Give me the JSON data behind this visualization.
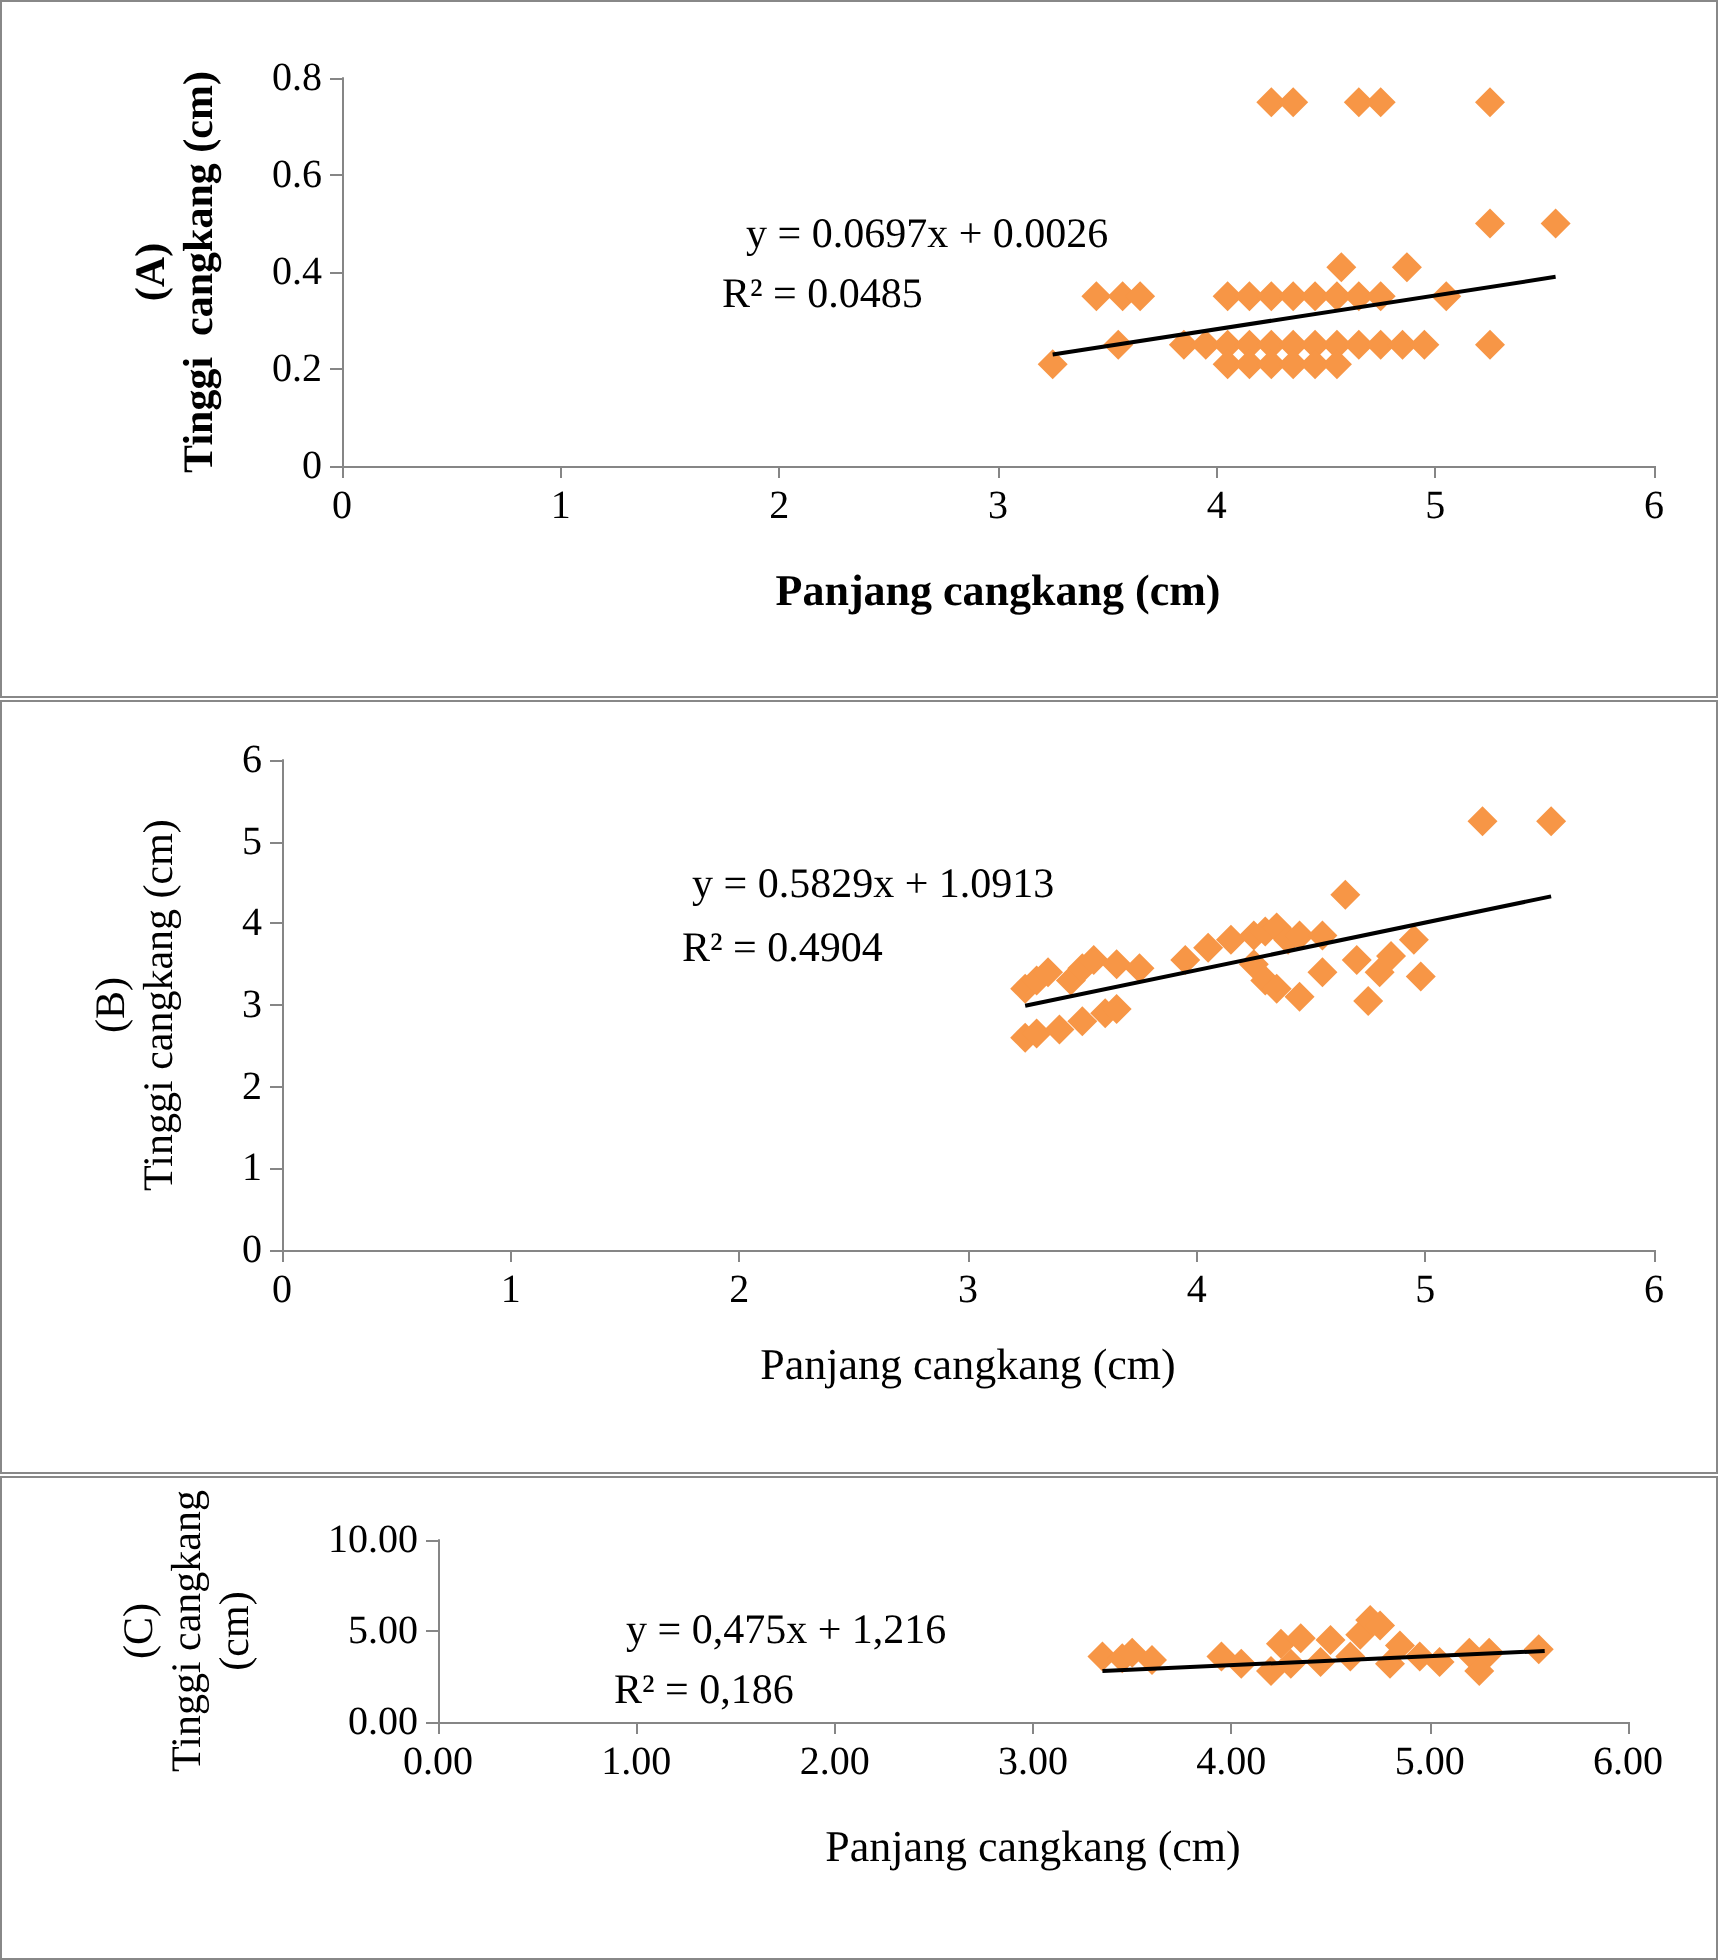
{
  "chart_data": [
    {
      "type": "scatter",
      "xlabel": "Panjang cangkang (cm)",
      "ylabel": "(A)\nTinggi  cangkang (cm)",
      "xlim": [
        0,
        6
      ],
      "xticks": [
        0,
        1,
        2,
        3,
        4,
        5,
        6
      ],
      "ylim": [
        0,
        0.8
      ],
      "yticks": [
        0,
        0.2,
        0.4,
        0.6,
        0.8
      ],
      "grid": false,
      "marker": "diamond",
      "annotations": [
        "y = 0.0697x + 0.0026",
        "R² = 0.0485"
      ],
      "series": [
        {
          "color": "#f79646",
          "x": [
            4.25,
            4.35,
            4.65,
            4.75,
            5.25,
            5.25,
            5.55,
            4.57,
            4.87,
            3.45,
            3.57,
            3.65,
            4.05,
            4.15,
            4.25,
            4.35,
            4.45,
            4.55,
            4.65,
            4.75,
            5.05,
            3.55,
            3.85,
            3.95,
            4.05,
            4.15,
            4.25,
            4.35,
            4.45,
            4.55,
            4.65,
            4.75,
            4.85,
            4.95,
            5.25,
            3.25,
            4.05,
            4.15,
            4.25,
            4.35,
            4.45,
            4.55
          ],
          "values": [
            0.75,
            0.75,
            0.75,
            0.75,
            0.75,
            0.5,
            0.5,
            0.41,
            0.41,
            0.35,
            0.35,
            0.35,
            0.35,
            0.35,
            0.35,
            0.35,
            0.35,
            0.35,
            0.35,
            0.35,
            0.35,
            0.25,
            0.25,
            0.25,
            0.25,
            0.25,
            0.25,
            0.25,
            0.25,
            0.25,
            0.25,
            0.25,
            0.25,
            0.25,
            0.25,
            0.21,
            0.21,
            0.21,
            0.21,
            0.21,
            0.21,
            0.21
          ]
        },
        {
          "type": "line",
          "color": "#000000",
          "marker": "none",
          "line_style": "solid",
          "x": [
            3.25,
            5.55
          ],
          "values": [
            0.23,
            0.39
          ]
        }
      ]
    },
    {
      "type": "scatter",
      "xlabel": "Panjang cangkang (cm)",
      "ylabel": "(B)\nTinggi cangkang (cm)",
      "xlim": [
        0,
        6
      ],
      "xticks": [
        0,
        1,
        2,
        3,
        4,
        5,
        6
      ],
      "ylim": [
        0,
        6
      ],
      "yticks": [
        0,
        1,
        2,
        3,
        4,
        5,
        6
      ],
      "grid": false,
      "marker": "diamond",
      "annotations": [
        "y = 0.5829x + 1.0913",
        "R² = 0.4904"
      ],
      "series": [
        {
          "color": "#f79646",
          "x": [
            3.25,
            3.3,
            3.4,
            3.5,
            3.6,
            3.65,
            3.25,
            3.3,
            3.35,
            3.45,
            3.5,
            3.55,
            3.65,
            3.75,
            3.95,
            4.05,
            4.15,
            4.25,
            4.3,
            4.35,
            4.4,
            4.45,
            4.55,
            4.25,
            4.3,
            4.35,
            4.45,
            4.55,
            4.65,
            4.7,
            4.75,
            4.8,
            4.85,
            4.95,
            4.98,
            5.25,
            5.55
          ],
          "values": [
            2.6,
            2.65,
            2.7,
            2.8,
            2.9,
            2.95,
            3.2,
            3.3,
            3.4,
            3.3,
            3.45,
            3.55,
            3.5,
            3.45,
            3.55,
            3.7,
            3.8,
            3.85,
            3.9,
            3.95,
            3.8,
            3.85,
            3.85,
            3.5,
            3.3,
            3.2,
            3.1,
            3.4,
            4.35,
            3.55,
            3.05,
            3.4,
            3.6,
            3.8,
            3.35,
            5.25,
            5.25
          ]
        },
        {
          "type": "line",
          "color": "#000000",
          "marker": "none",
          "line_style": "solid",
          "x": [
            3.25,
            5.55
          ],
          "values": [
            2.99,
            4.33
          ]
        }
      ]
    },
    {
      "type": "scatter",
      "xlabel": "Panjang cangkang (cm)",
      "ylabel": "(C)\nTinggi cangkang\n(cm)",
      "xlim": [
        0,
        6
      ],
      "xticks": [
        {
          "value": 0,
          "label": "0.00"
        },
        {
          "value": 1,
          "label": "1.00"
        },
        {
          "value": 2,
          "label": "2.00"
        },
        {
          "value": 3,
          "label": "3.00"
        },
        {
          "value": 4,
          "label": "4.00"
        },
        {
          "value": 5,
          "label": "5.00"
        },
        {
          "value": 6,
          "label": "6.00"
        }
      ],
      "ylim": [
        0,
        10
      ],
      "yticks": [
        {
          "value": 0,
          "label": "0.00"
        },
        {
          "value": 5,
          "label": "5.00"
        },
        {
          "value": 10,
          "label": "10.00"
        }
      ],
      "grid": false,
      "marker": "diamond",
      "annotations": [
        "y = 0,475x + 1,216",
        "R² = 0,186"
      ],
      "series": [
        {
          "color": "#f79646",
          "x": [
            3.35,
            3.45,
            3.5,
            3.6,
            3.95,
            4.05,
            4.2,
            4.25,
            4.3,
            4.35,
            4.45,
            4.5,
            4.6,
            4.65,
            4.7,
            4.75,
            4.8,
            4.85,
            4.95,
            5.05,
            5.2,
            5.25,
            5.3,
            5.55
          ],
          "values": [
            3.6,
            3.5,
            3.8,
            3.4,
            3.6,
            3.2,
            2.8,
            4.3,
            3.2,
            4.6,
            3.3,
            4.5,
            3.6,
            4.8,
            5.6,
            5.3,
            3.2,
            4.2,
            3.6,
            3.3,
            3.8,
            2.8,
            3.8,
            4.0
          ]
        },
        {
          "type": "line",
          "color": "#000000",
          "marker": "none",
          "line_style": "solid",
          "x": [
            3.35,
            5.58
          ],
          "values": [
            2.8,
            3.9
          ]
        }
      ]
    }
  ]
}
